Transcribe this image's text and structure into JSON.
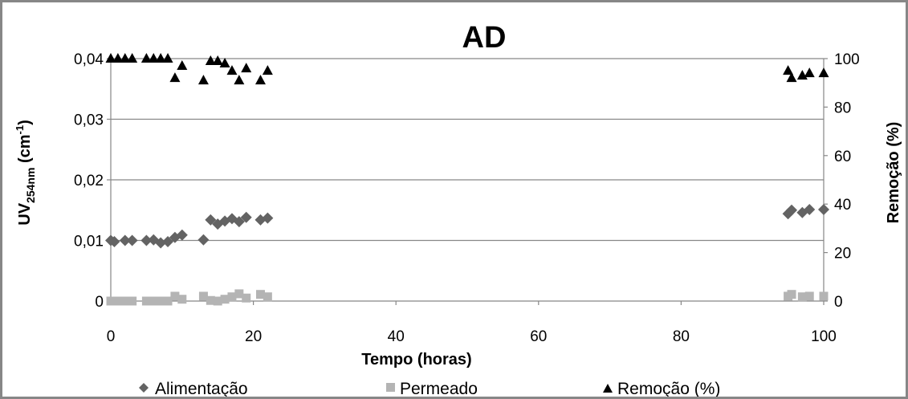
{
  "chart_data": {
    "type": "scatter",
    "title": "AD",
    "xlabel": "Tempo (horas)",
    "ylabel_main": "UV",
    "ylabel_sub": "254nm",
    "ylabel_unit_pre": " (cm",
    "ylabel_unit_sup": "-1",
    "ylabel_unit_post": ")",
    "y2label": "Remoção (%)",
    "xlim": [
      0,
      100
    ],
    "ylim": [
      0,
      0.04
    ],
    "y2lim": [
      0,
      100
    ],
    "x_ticks": [
      "0",
      "20",
      "40",
      "60",
      "80",
      "100"
    ],
    "y_ticks": [
      "0",
      "0,01",
      "0,02",
      "0,03",
      "0,04"
    ],
    "y2_ticks": [
      "0",
      "20",
      "40",
      "60",
      "80",
      "100"
    ],
    "grid": true,
    "legend_position": "bottom",
    "series": [
      {
        "name": "Alimentação",
        "axis": "left",
        "marker": "diamond",
        "color": "#636363",
        "x": [
          0,
          0.5,
          2,
          3,
          5,
          6,
          7,
          8,
          9,
          10,
          13,
          14,
          15,
          16,
          17,
          18,
          19,
          21,
          22,
          95,
          95.5,
          97,
          98,
          100
        ],
        "y": [
          0.01,
          0.0098,
          0.01,
          0.01,
          0.01,
          0.0101,
          0.0096,
          0.0098,
          0.0105,
          0.0109,
          0.0101,
          0.0134,
          0.0127,
          0.0132,
          0.0136,
          0.0131,
          0.0138,
          0.0134,
          0.0137,
          0.0144,
          0.015,
          0.0146,
          0.0151,
          0.0151
        ]
      },
      {
        "name": "Permeado",
        "axis": "left",
        "marker": "square",
        "color": "#b4b4b4",
        "x": [
          0,
          1,
          2,
          3,
          5,
          6,
          7,
          8,
          9,
          10,
          13,
          14,
          15,
          16,
          17,
          18,
          19,
          21,
          22,
          95,
          95.5,
          97,
          98,
          100
        ],
        "y": [
          0,
          0,
          0,
          0,
          0,
          0,
          0,
          0,
          0.0008,
          0.0003,
          0.0008,
          0.0001,
          0,
          0.0003,
          0.0007,
          0.0012,
          0.0005,
          0.0011,
          0.0007,
          0.0008,
          0.0011,
          0.0007,
          0.0008,
          0.0008
        ]
      },
      {
        "name": "Remoção (%)",
        "axis": "right",
        "marker": "triangle",
        "color": "#000000",
        "x": [
          0,
          1,
          2,
          3,
          5,
          6,
          7,
          8,
          9,
          10,
          13,
          14,
          15,
          16,
          17,
          18,
          19,
          21,
          22,
          95,
          95.5,
          97,
          98,
          100
        ],
        "y": [
          100,
          100,
          100,
          100,
          100,
          100,
          100,
          100,
          92,
          97,
          91,
          99,
          99,
          98,
          95,
          91,
          96,
          91,
          95,
          95,
          92,
          93,
          94,
          94
        ]
      }
    ]
  }
}
